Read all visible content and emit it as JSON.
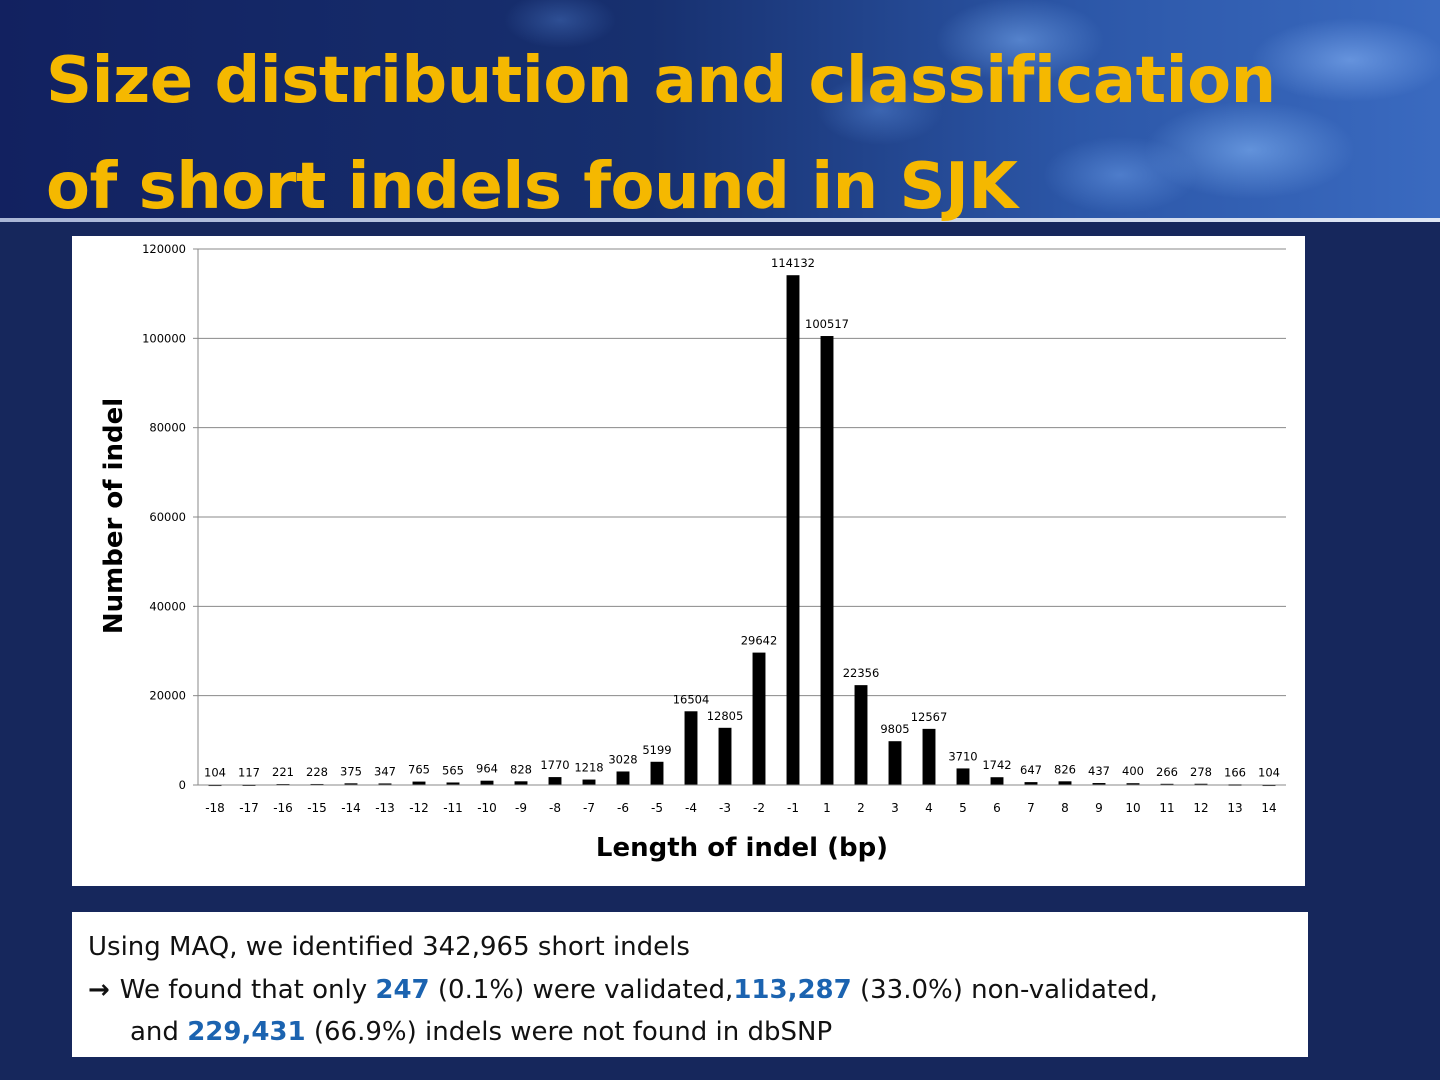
{
  "slide": {
    "title_line1": "Size distribution and classification",
    "title_line2": "of short indels found in SJK"
  },
  "chart_data": {
    "type": "bar",
    "xlabel": "Length of indel (bp)",
    "ylabel": "Number of indel",
    "ylim": [
      0,
      120000
    ],
    "yticks": [
      "0",
      "20000",
      "40000",
      "60000",
      "80000",
      "100000",
      "120000"
    ],
    "grid": true,
    "categories": [
      "-18",
      "-17",
      "-16",
      "-15",
      "-14",
      "-13",
      "-12",
      "-11",
      "-10",
      "-9",
      "-8",
      "-7",
      "-6",
      "-5",
      "-4",
      "-3",
      "-2",
      "-1",
      "1",
      "2",
      "3",
      "4",
      "5",
      "6",
      "7",
      "8",
      "9",
      "10",
      "11",
      "12",
      "13",
      "14"
    ],
    "values": [
      104,
      117,
      221,
      228,
      375,
      347,
      765,
      565,
      964,
      828,
      1770,
      1218,
      3028,
      5199,
      16504,
      12805,
      29642,
      114132,
      100517,
      22356,
      9805,
      12567,
      3710,
      1742,
      647,
      826,
      437,
      400,
      266,
      278,
      166,
      104
    ],
    "bar_color": "#000000"
  },
  "summary": {
    "line1": "Using MAQ, we identified 342,965 short indels",
    "arrow": "→",
    "l2_a": "We found that only ",
    "validated_count": "247",
    "l2_b": " (0.1%) were validated,",
    "nonvalidated_count": "113,287",
    "l2_c": " (33.0%) non-validated,",
    "l3_a": "and ",
    "notfound_count": "229,431",
    "l3_b": " (66.9%) indels were not found in dbSNP",
    "highlight_color": "#1b63b0"
  }
}
